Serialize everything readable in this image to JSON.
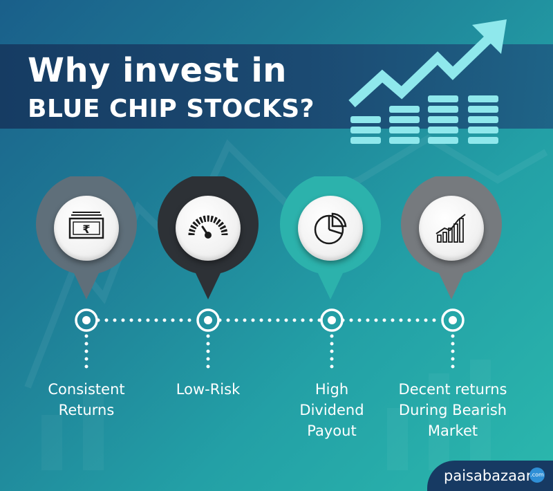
{
  "title": {
    "line1": "Why invest in",
    "line2": "BLUE CHIP STOCKS?"
  },
  "benefits": [
    {
      "label": "Consistent\nReturns",
      "icon": "money-icon",
      "pin_color": "#5f6f7a"
    },
    {
      "label": "Low-Risk",
      "icon": "speedometer-icon",
      "pin_color": "#2d3136"
    },
    {
      "label": "High\nDividend\nPayout",
      "icon": "pie-chart-icon",
      "pin_color": "#2cb2ac"
    },
    {
      "label": "Decent returns\nDuring Bearish\nMarket",
      "icon": "bar-chart-icon",
      "pin_color": "#767a7e"
    }
  ],
  "brand": {
    "name": "paisabazaar",
    "suffix": ".com"
  },
  "colors": {
    "title_band": "#173a63",
    "accent": "#8fe8ec",
    "background_start": "#1a5f8a",
    "background_end": "#2bb8ad"
  }
}
